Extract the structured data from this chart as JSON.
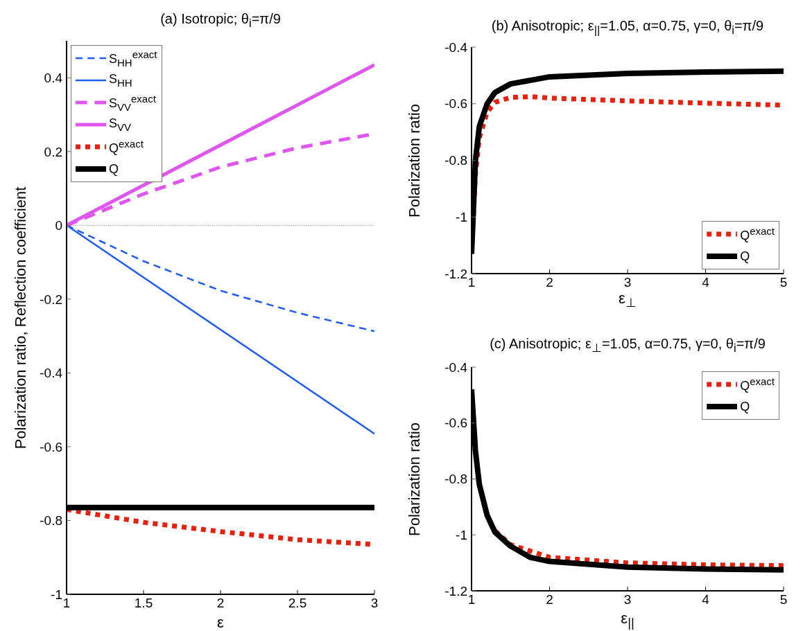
{
  "chart_data": [
    {
      "type": "line",
      "title": "(a) Isotropic; θ$_{i}$=π/9",
      "xlabel": "ε",
      "ylabel": "Polarization ratio, Reflection coefficient",
      "xlim": [
        1,
        3
      ],
      "xticks": [
        1,
        1.5,
        2,
        2.5,
        3
      ],
      "ylim": [
        -1,
        0.5
      ],
      "yticks": [
        -1,
        -0.8,
        -0.6,
        -0.4,
        -0.2,
        0,
        0.2,
        0.4
      ],
      "legend": "top left",
      "marker": "none",
      "ref_lines": [
        {
          "axis": "y",
          "value": 0,
          "color": "#999999",
          "line_style": "dotted"
        }
      ],
      "series": [
        {
          "name": "S$_{HH}$$^{exact}$",
          "color": "#1e5bf5",
          "line_style": "dashed",
          "x": [
            1,
            1.5,
            2,
            2.5,
            3
          ],
          "values": [
            0,
            -0.097,
            -0.177,
            -0.237,
            -0.287
          ]
        },
        {
          "name": "S$_{HH}$",
          "color": "#1e5bf5",
          "line_style": "solid",
          "x": [
            1,
            3
          ],
          "values": [
            0,
            -0.565
          ]
        },
        {
          "name": "S$_{VV}$$^{exact}$",
          "color": "#e055f0",
          "line_style": "dashed",
          "x": [
            1,
            1.5,
            2,
            2.5,
            3
          ],
          "values": [
            0,
            0.085,
            0.158,
            0.21,
            0.248
          ]
        },
        {
          "name": "S$_{VV}$",
          "color": "#e055f0",
          "line_style": "solid",
          "x": [
            1,
            3
          ],
          "values": [
            0,
            0.435
          ]
        },
        {
          "name": "Q$^{exact}$",
          "color": "#e8210e",
          "line_style": "dotted",
          "x": [
            1,
            1.5,
            2,
            2.5,
            3
          ],
          "values": [
            -0.77,
            -0.805,
            -0.83,
            -0.852,
            -0.865
          ]
        },
        {
          "name": "Q",
          "color": "#000000",
          "line_style": "solid",
          "x": [
            1,
            3
          ],
          "values": [
            -0.765,
            -0.765
          ]
        }
      ]
    },
    {
      "type": "line",
      "title": "(b) Anisotropic; ε$_{||}$=1.05, α=0.75, γ=0, θ$_{i}$=π/9",
      "xlabel": "ε$_{⊥}$",
      "ylabel": "Polarization ratio",
      "xlim": [
        1,
        5
      ],
      "xticks": [
        1,
        2,
        3,
        4,
        5
      ],
      "ylim": [
        -1.2,
        -0.4
      ],
      "yticks": [
        -1.2,
        -1,
        -0.8,
        -0.6,
        -0.4
      ],
      "legend": "bottom right",
      "marker": "none",
      "series": [
        {
          "name": "Q$^{exact}$",
          "color": "#e8210e",
          "line_style": "dotted",
          "x": [
            1,
            1.05,
            1.1,
            1.2,
            1.3,
            1.5,
            1.75,
            2,
            3,
            4,
            5
          ],
          "values": [
            -1.13,
            -0.85,
            -0.72,
            -0.63,
            -0.595,
            -0.578,
            -0.575,
            -0.58,
            -0.59,
            -0.598,
            -0.605
          ]
        },
        {
          "name": "Q",
          "color": "#000000",
          "line_style": "solid",
          "x": [
            1,
            1.05,
            1.1,
            1.2,
            1.3,
            1.5,
            2,
            3,
            4,
            5
          ],
          "values": [
            -1.13,
            -0.8,
            -0.68,
            -0.6,
            -0.56,
            -0.53,
            -0.505,
            -0.493,
            -0.488,
            -0.485
          ]
        }
      ]
    },
    {
      "type": "line",
      "title": "(c) Anisotropic; ε$_{⊥}$=1.05, α=0.75, γ=0, θ$_{i}$=π/9",
      "xlabel": "ε$_{||}$",
      "ylabel": "Polarization ratio",
      "xlim": [
        1,
        5
      ],
      "xticks": [
        1,
        2,
        3,
        4,
        5
      ],
      "ylim": [
        -1.2,
        -0.4
      ],
      "yticks": [
        -1.2,
        -1,
        -0.8,
        -0.6,
        -0.4
      ],
      "legend": "top right",
      "marker": "none",
      "series": [
        {
          "name": "Q$^{exact}$",
          "color": "#e8210e",
          "line_style": "dotted",
          "x": [
            1.3,
            1.5,
            2,
            3,
            4,
            5
          ],
          "values": [
            -0.985,
            -1.035,
            -1.08,
            -1.1,
            -1.107,
            -1.11
          ]
        },
        {
          "name": "Q",
          "color": "#000000",
          "line_style": "solid",
          "x": [
            1,
            1.05,
            1.1,
            1.2,
            1.3,
            1.5,
            1.75,
            2,
            3,
            4,
            5
          ],
          "values": [
            -0.48,
            -0.7,
            -0.82,
            -0.93,
            -0.99,
            -1.04,
            -1.08,
            -1.095,
            -1.115,
            -1.122,
            -1.125
          ]
        }
      ]
    }
  ]
}
